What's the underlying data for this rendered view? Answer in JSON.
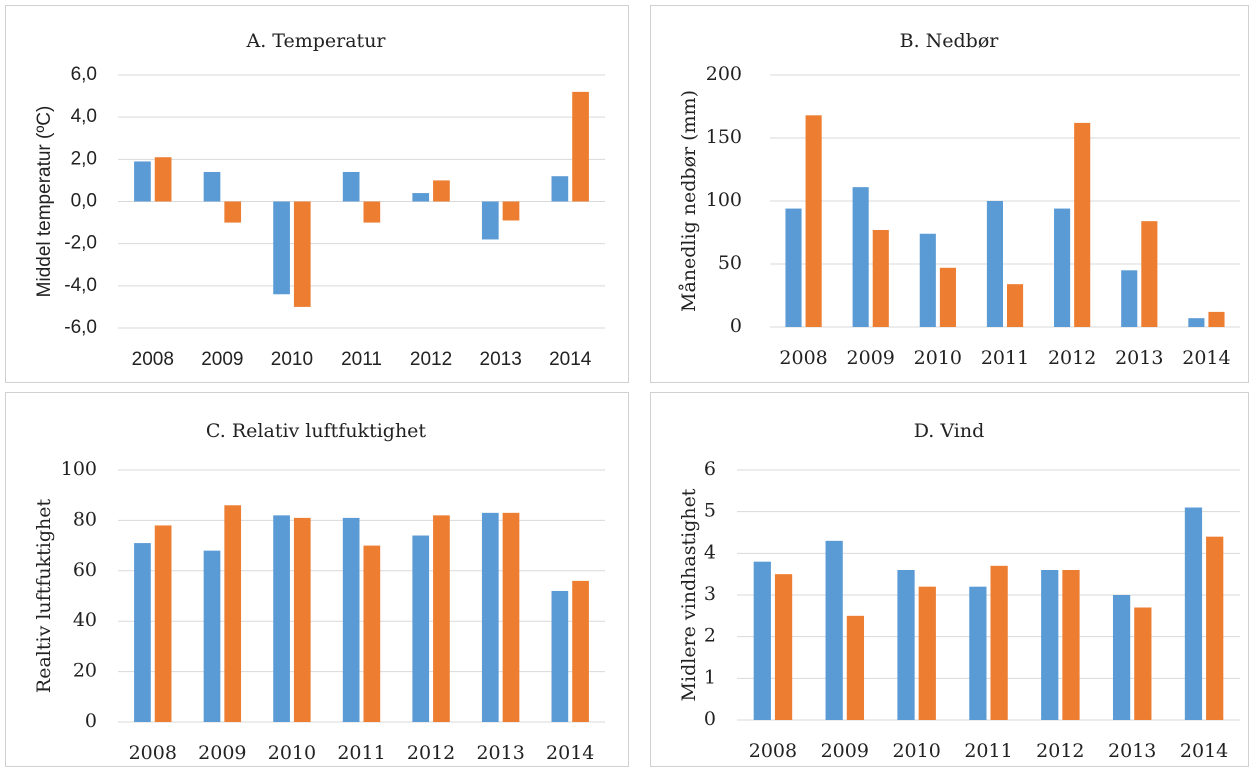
{
  "chart_data": [
    {
      "type": "bar",
      "title": "A. Temperatur",
      "y_label": "Middel temperatur (ºC)",
      "categories": [
        "2008",
        "2009",
        "2010",
        "2011",
        "2012",
        "2013",
        "2014"
      ],
      "series": [
        {
          "color": "#5b9bd5",
          "values": [
            1.9,
            1.4,
            -4.4,
            1.4,
            0.4,
            -1.8,
            1.2
          ]
        },
        {
          "color": "#ed7d31",
          "values": [
            2.1,
            -1.0,
            -5.0,
            -1.0,
            1.0,
            -0.9,
            5.2
          ]
        }
      ],
      "ylim": [
        -6,
        6
      ],
      "yticks": [
        {
          "value": -6,
          "label": "-6,0"
        },
        {
          "value": -4,
          "label": "-4,0"
        },
        {
          "value": -2,
          "label": "-2,0"
        },
        {
          "value": 0,
          "label": "0,0"
        },
        {
          "value": 2,
          "label": "2,0"
        },
        {
          "value": 4,
          "label": "4,0"
        },
        {
          "value": 6,
          "label": "6,0"
        }
      ],
      "grid": true
    },
    {
      "type": "bar",
      "title": "B. Nedbør",
      "y_label": "Månedlig nedbør (mm)",
      "categories": [
        "2008",
        "2009",
        "2010",
        "2011",
        "2012",
        "2013",
        "2014"
      ],
      "series": [
        {
          "color": "#5b9bd5",
          "values": [
            94,
            111,
            74,
            100,
            94,
            45,
            7
          ]
        },
        {
          "color": "#ed7d31",
          "values": [
            168,
            77,
            47,
            34,
            162,
            84,
            12
          ]
        }
      ],
      "ylim": [
        0,
        200
      ],
      "yticks": [
        0,
        50,
        100,
        150,
        200
      ],
      "grid": true
    },
    {
      "type": "bar",
      "title": "C. Relativ luftfuktighet",
      "y_label": "Realtiv luftfuktighet",
      "categories": [
        "2008",
        "2009",
        "2010",
        "2011",
        "2012",
        "2013",
        "2014"
      ],
      "series": [
        {
          "color": "#5b9bd5",
          "values": [
            71,
            68,
            82,
            81,
            74,
            83,
            52
          ]
        },
        {
          "color": "#ed7d31",
          "values": [
            78,
            86,
            81,
            70,
            82,
            83,
            56
          ]
        }
      ],
      "ylim": [
        0,
        100
      ],
      "yticks": [
        0,
        20,
        40,
        60,
        80,
        100
      ],
      "grid": true
    },
    {
      "type": "bar",
      "title": "D. Vind",
      "y_label": "Midlere vindhastighet",
      "categories": [
        "2008",
        "2009",
        "2010",
        "2011",
        "2012",
        "2013",
        "2014"
      ],
      "series": [
        {
          "color": "#5b9bd5",
          "values": [
            3.8,
            4.3,
            3.6,
            3.2,
            3.6,
            3.0,
            5.1
          ]
        },
        {
          "color": "#ed7d31",
          "values": [
            3.5,
            2.5,
            3.2,
            3.7,
            3.6,
            2.7,
            4.4
          ]
        }
      ],
      "ylim": [
        0,
        6
      ],
      "yticks": [
        0,
        1,
        2,
        3,
        4,
        5,
        6
      ],
      "grid": true
    }
  ]
}
